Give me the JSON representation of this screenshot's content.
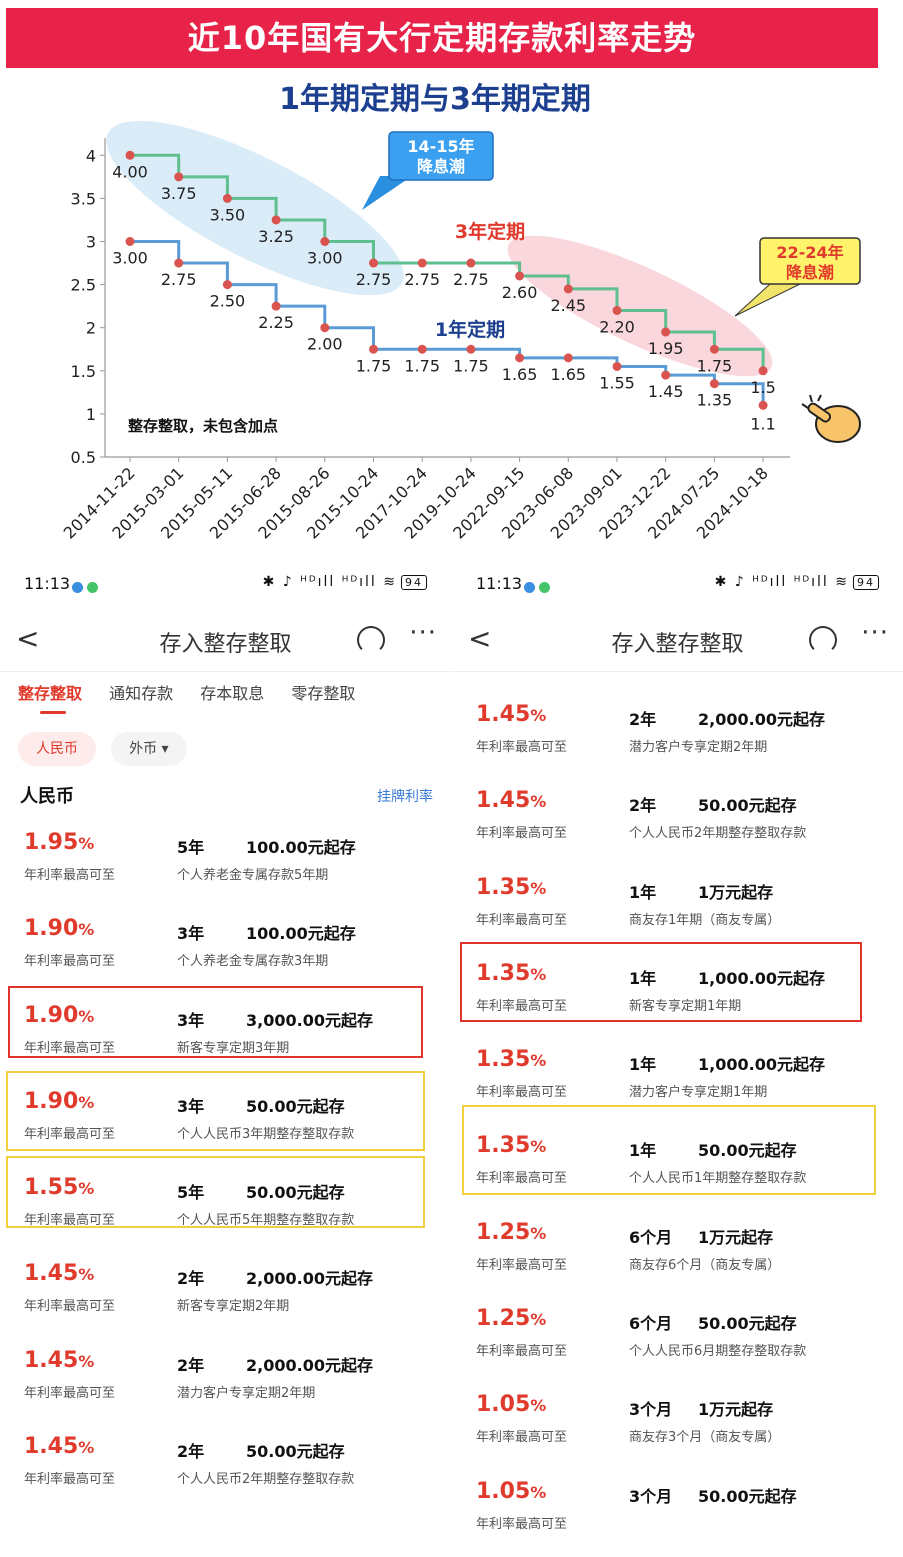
{
  "infographic": {
    "banner": "近10年国有大行定期存款利率走势",
    "subtitle": "1年期定期与3年期定期",
    "label_3yr": "3年定期",
    "label_1yr": "1年定期",
    "callout_1": [
      "14-15年",
      "降息潮"
    ],
    "callout_2": [
      "22-24年",
      "降息潮"
    ],
    "note": "整存整取，未包含加点",
    "colors": {
      "three_year": "#5fbf8f",
      "one_year": "#5b9bd5",
      "point": "#d9534f",
      "banner": "#e8234a"
    }
  },
  "chart_data": {
    "type": "line",
    "x": [
      "2014-11-22",
      "2015-03-01",
      "2015-05-11",
      "2015-06-28",
      "2015-08-26",
      "2015-10-24",
      "2017-10-24",
      "2019-10-24",
      "2022-09-15",
      "2023-06-08",
      "2023-09-01",
      "2023-12-22",
      "2024-07-25",
      "2024-10-18"
    ],
    "series": [
      {
        "name": "3年定期",
        "values": [
          4.0,
          3.75,
          3.5,
          3.25,
          3.0,
          2.75,
          2.75,
          2.75,
          2.6,
          2.45,
          2.2,
          1.95,
          1.75,
          1.5
        ],
        "labels": [
          "4.00",
          "3.75",
          "3.50",
          "3.25",
          "3.00",
          "2.75",
          "2.75",
          "2.75",
          "2.60",
          "2.45",
          "2.20",
          "1.95",
          "1.75",
          "1.5"
        ]
      },
      {
        "name": "1年定期",
        "values": [
          3.0,
          2.75,
          2.5,
          2.25,
          2.0,
          1.75,
          1.75,
          1.75,
          1.65,
          1.65,
          1.55,
          1.45,
          1.35,
          1.1
        ],
        "labels": [
          "3.00",
          "2.75",
          "2.50",
          "2.25",
          "2.00",
          "1.75",
          "1.75",
          "1.75",
          "1.65",
          "1.65",
          "1.55",
          "1.45",
          "1.35",
          "1.1"
        ]
      }
    ],
    "yticks": [
      "0.5",
      "1",
      "1.5",
      "2",
      "2.5",
      "3",
      "3.5",
      "4"
    ],
    "ylim": [
      0.5,
      4
    ]
  },
  "left_phone": {
    "time": "11:13",
    "status_icons": "✱ ♪ ᴴᴰıll ᴴᴰıll ≋",
    "battery": "94",
    "title": "存入整存整取",
    "tabs": [
      "整存整取",
      "通知存款",
      "存本取息",
      "零存整取"
    ],
    "chips": [
      "人民币",
      "外币 ▾"
    ],
    "section_title": "人民币",
    "section_link": "挂牌利率",
    "rate_label": "年利率最高可至",
    "rows": [
      {
        "rate": "1.95",
        "term": "5年",
        "min": "100.00元起存",
        "name": "个人养老金专属存款5年期"
      },
      {
        "rate": "1.90",
        "term": "3年",
        "min": "100.00元起存",
        "name": "个人养老金专属存款3年期"
      },
      {
        "rate": "1.90",
        "term": "3年",
        "min": "3,000.00元起存",
        "name": "新客专享定期3年期"
      },
      {
        "rate": "1.90",
        "term": "3年",
        "min": "50.00元起存",
        "name": "个人人民币3年期整存整取存款"
      },
      {
        "rate": "1.55",
        "term": "5年",
        "min": "50.00元起存",
        "name": "个人人民币5年期整存整取存款"
      },
      {
        "rate": "1.45",
        "term": "2年",
        "min": "2,000.00元起存",
        "name": "新客专享定期2年期"
      },
      {
        "rate": "1.45",
        "term": "2年",
        "min": "2,000.00元起存",
        "name": "潜力客户专享定期2年期"
      },
      {
        "rate": "1.45",
        "term": "2年",
        "min": "50.00元起存",
        "name": "个人人民币2年期整存整取存款"
      }
    ]
  },
  "right_phone": {
    "time": "11:13",
    "status_icons": "✱ ♪ ᴴᴰıll ᴴᴰıll ≋",
    "battery": "94",
    "title": "存入整存整取",
    "rate_label": "年利率最高可至",
    "rows": [
      {
        "rate": "1.45",
        "term": "2年",
        "min": "2,000.00元起存",
        "name": "潜力客户专享定期2年期"
      },
      {
        "rate": "1.45",
        "term": "2年",
        "min": "50.00元起存",
        "name": "个人人民币2年期整存整取存款"
      },
      {
        "rate": "1.35",
        "term": "1年",
        "min": "1万元起存",
        "name": "商友存1年期（商友专属）"
      },
      {
        "rate": "1.35",
        "term": "1年",
        "min": "1,000.00元起存",
        "name": "新客专享定期1年期"
      },
      {
        "rate": "1.35",
        "term": "1年",
        "min": "1,000.00元起存",
        "name": "潜力客户专享定期1年期"
      },
      {
        "rate": "1.35",
        "term": "1年",
        "min": "50.00元起存",
        "name": "个人人民币1年期整存整取存款"
      },
      {
        "rate": "1.25",
        "term": "6个月",
        "min": "1万元起存",
        "name": "商友存6个月（商友专属）"
      },
      {
        "rate": "1.25",
        "term": "6个月",
        "min": "50.00元起存",
        "name": "个人人民币6月期整存整取存款"
      },
      {
        "rate": "1.05",
        "term": "3个月",
        "min": "1万元起存",
        "name": "商友存3个月（商友专属）"
      },
      {
        "rate": "1.05",
        "term": "3个月",
        "min": "50.00元起存",
        "name": ""
      }
    ]
  }
}
